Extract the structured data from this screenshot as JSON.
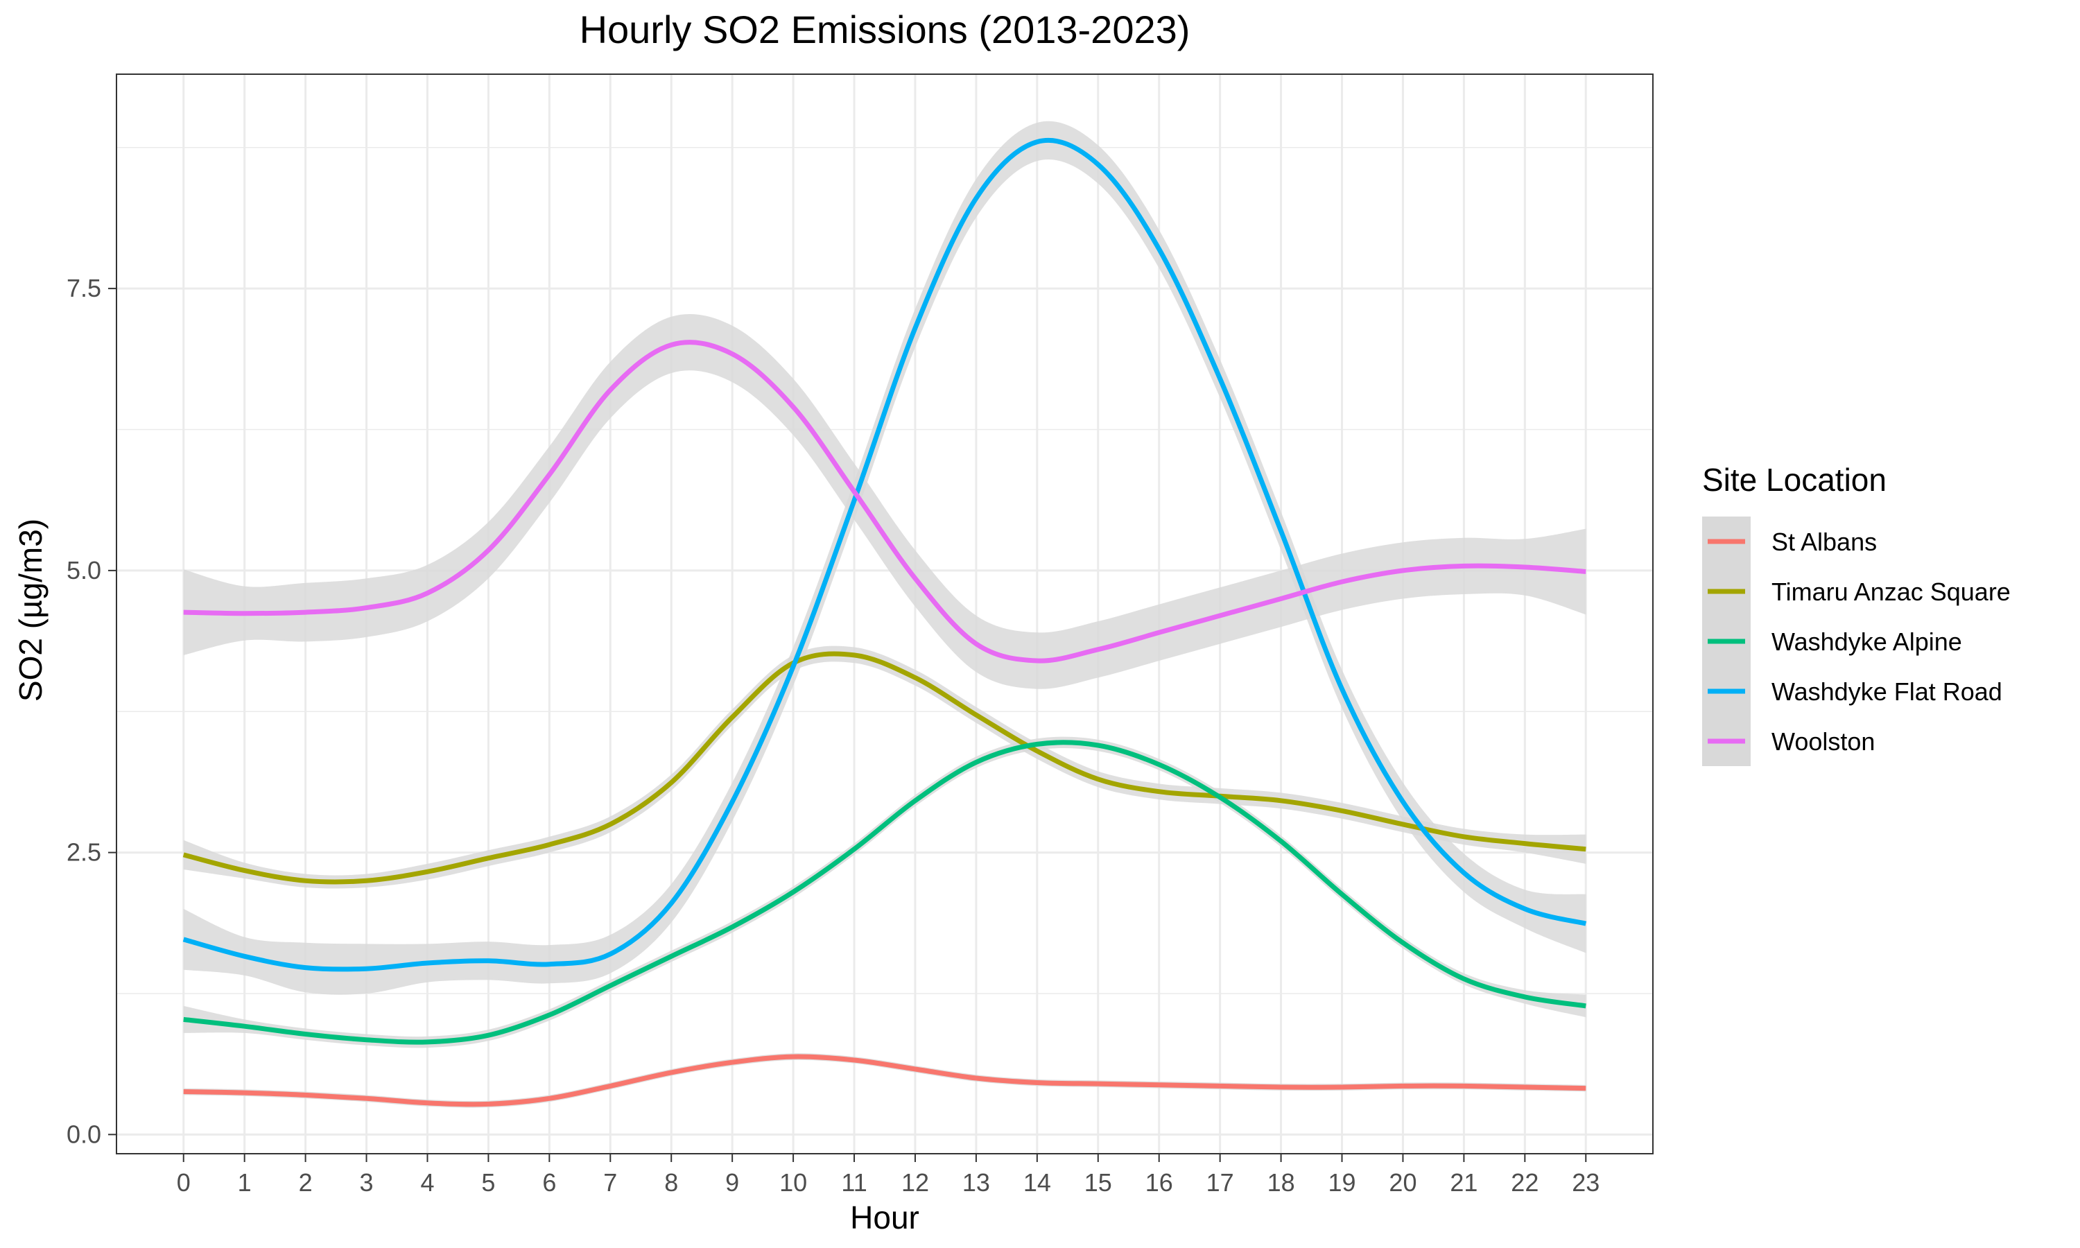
{
  "chart_data": {
    "type": "line",
    "title": "Hourly SO2 Emissions (2013-2023)",
    "xlabel": "Hour",
    "ylabel": "SO2 (µg/m3)",
    "xlim": [
      -1.1,
      24.1
    ],
    "ylim": [
      -0.17,
      9.4
    ],
    "x_ticks": [
      0,
      1,
      2,
      3,
      4,
      5,
      6,
      7,
      8,
      9,
      10,
      11,
      12,
      13,
      14,
      15,
      16,
      17,
      18,
      19,
      20,
      21,
      22,
      23
    ],
    "x_tick_labels": [
      "0",
      "1",
      "2",
      "3",
      "4",
      "5",
      "6",
      "7",
      "8",
      "9",
      "10",
      "11",
      "12",
      "13",
      "14",
      "15",
      "16",
      "17",
      "18",
      "19",
      "20",
      "21",
      "22",
      "23"
    ],
    "y_ticks": [
      0,
      2.5,
      5,
      7.5
    ],
    "y_tick_labels": [
      "0.0",
      "2.5",
      "5.0",
      "7.5"
    ],
    "grid": true,
    "legend": {
      "title": "Site Location",
      "position": "right"
    },
    "x": [
      0,
      1,
      2,
      3,
      4,
      5,
      6,
      7,
      8,
      9,
      10,
      11,
      12,
      13,
      14,
      15,
      16,
      17,
      18,
      19,
      20,
      21,
      22,
      23
    ],
    "series": [
      {
        "name": "St Albans",
        "color": "#F8766D",
        "values": [
          0.38,
          0.37,
          0.35,
          0.32,
          0.28,
          0.27,
          0.32,
          0.43,
          0.55,
          0.64,
          0.69,
          0.66,
          0.58,
          0.5,
          0.46,
          0.45,
          0.44,
          0.43,
          0.42,
          0.42,
          0.43,
          0.43,
          0.42,
          0.41
        ],
        "band": [
          0.03,
          0.03,
          0.03,
          0.03,
          0.03,
          0.03,
          0.03,
          0.03,
          0.03,
          0.03,
          0.03,
          0.03,
          0.03,
          0.03,
          0.03,
          0.03,
          0.03,
          0.03,
          0.03,
          0.03,
          0.03,
          0.03,
          0.03,
          0.03
        ]
      },
      {
        "name": "Timaru Anzac Square",
        "color": "#A3A500",
        "values": [
          2.48,
          2.34,
          2.25,
          2.25,
          2.33,
          2.45,
          2.57,
          2.75,
          3.12,
          3.7,
          4.18,
          4.25,
          4.05,
          3.72,
          3.4,
          3.15,
          3.04,
          3.0,
          2.96,
          2.87,
          2.75,
          2.64,
          2.58,
          2.53
        ],
        "band": [
          0.13,
          0.07,
          0.06,
          0.06,
          0.07,
          0.07,
          0.07,
          0.07,
          0.07,
          0.07,
          0.07,
          0.07,
          0.07,
          0.07,
          0.07,
          0.07,
          0.07,
          0.07,
          0.07,
          0.07,
          0.07,
          0.07,
          0.08,
          0.13
        ]
      },
      {
        "name": "Washdyke Alpine",
        "color": "#00BF7D",
        "values": [
          1.02,
          0.96,
          0.89,
          0.84,
          0.82,
          0.88,
          1.06,
          1.32,
          1.58,
          1.84,
          2.15,
          2.53,
          2.96,
          3.3,
          3.46,
          3.45,
          3.28,
          2.99,
          2.6,
          2.13,
          1.7,
          1.38,
          1.22,
          1.14
        ],
        "band": [
          0.12,
          0.06,
          0.05,
          0.05,
          0.05,
          0.05,
          0.05,
          0.05,
          0.05,
          0.05,
          0.05,
          0.05,
          0.05,
          0.05,
          0.05,
          0.05,
          0.05,
          0.05,
          0.05,
          0.05,
          0.05,
          0.05,
          0.06,
          0.1
        ]
      },
      {
        "name": "Washdyke Flat Road",
        "color": "#00B0F6",
        "values": [
          1.73,
          1.58,
          1.48,
          1.47,
          1.52,
          1.54,
          1.51,
          1.6,
          2.05,
          2.95,
          4.15,
          5.62,
          7.15,
          8.3,
          8.8,
          8.6,
          7.85,
          6.7,
          5.35,
          3.95,
          2.95,
          2.32,
          2.0,
          1.87
        ],
        "band": [
          0.27,
          0.17,
          0.22,
          0.22,
          0.17,
          0.17,
          0.17,
          0.17,
          0.17,
          0.17,
          0.17,
          0.17,
          0.17,
          0.17,
          0.17,
          0.17,
          0.17,
          0.17,
          0.17,
          0.17,
          0.17,
          0.17,
          0.17,
          0.26
        ]
      },
      {
        "name": "Woolston",
        "color": "#E76BF3",
        "values": [
          4.63,
          4.62,
          4.63,
          4.67,
          4.8,
          5.18,
          5.85,
          6.6,
          7.0,
          6.92,
          6.45,
          5.7,
          4.93,
          4.35,
          4.2,
          4.3,
          4.45,
          4.6,
          4.75,
          4.9,
          5.0,
          5.04,
          5.03,
          4.99
        ],
        "band": [
          0.38,
          0.24,
          0.26,
          0.26,
          0.25,
          0.25,
          0.25,
          0.25,
          0.25,
          0.25,
          0.25,
          0.25,
          0.25,
          0.25,
          0.25,
          0.25,
          0.25,
          0.25,
          0.25,
          0.25,
          0.25,
          0.25,
          0.25,
          0.38
        ]
      }
    ],
    "band_color": "#d9d9d9",
    "grid_color": "#ebebeb",
    "panel_border_color": "#333333"
  }
}
